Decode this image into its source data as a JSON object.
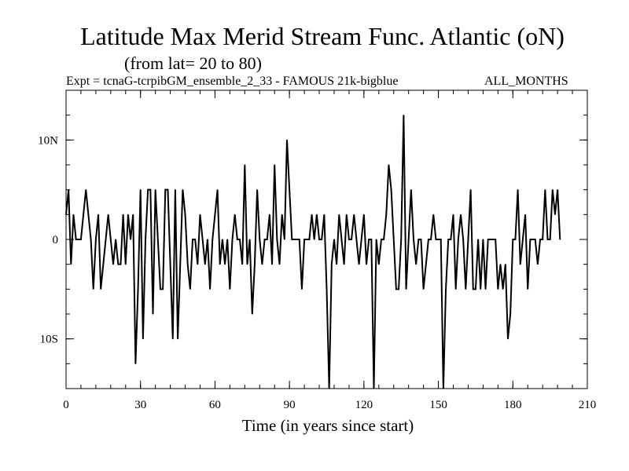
{
  "chart_data": {
    "type": "line",
    "title": "Latitude Max Merid Stream Func. Atlantic (oN)",
    "subtitle": "(from lat= 20 to 80)",
    "experiment": "Expt = tcnaG-tcrpibGM_ensemble_2_33 - FAMOUS 21k-bigblue",
    "months_label": "ALL_MONTHS",
    "xlabel": "Time (in years since start)",
    "ylabel": "",
    "xlim": [
      0,
      210
    ],
    "ylim": [
      -15,
      15
    ],
    "x_ticks": [
      {
        "value": 0,
        "label": "0"
      },
      {
        "value": 30,
        "label": "30"
      },
      {
        "value": 60,
        "label": "60"
      },
      {
        "value": 90,
        "label": "90"
      },
      {
        "value": 120,
        "label": "120"
      },
      {
        "value": 150,
        "label": "150"
      },
      {
        "value": 180,
        "label": "180"
      },
      {
        "value": 210,
        "label": "210"
      }
    ],
    "y_ticks": [
      {
        "value": 10,
        "label": "10N"
      },
      {
        "value": 0,
        "label": "0"
      },
      {
        "value": -10,
        "label": "10S"
      }
    ],
    "x_minor_step": 6,
    "y_minor_step": 2.5,
    "series": [
      {
        "name": "Latitude Max Merid Stream Func.",
        "x_start": 0,
        "x_step": 1,
        "values": [
          2.5,
          5,
          -2.5,
          2.5,
          0,
          0,
          0,
          2.5,
          5,
          2.5,
          0,
          -5,
          0,
          2.5,
          -5,
          -2.5,
          0,
          2.5,
          0,
          -2.5,
          0,
          -2.5,
          -2.5,
          2.5,
          -2.5,
          2.5,
          0,
          2.5,
          -12.5,
          -5,
          5,
          -10,
          0,
          5,
          5,
          -7.5,
          5,
          0,
          -5,
          -5,
          5,
          5,
          -2.5,
          -10,
          5,
          -10,
          -2.5,
          5,
          2.5,
          -2.5,
          -5,
          0,
          0,
          -2.5,
          2.5,
          0,
          -2.5,
          0,
          -5,
          0,
          2.5,
          5,
          -2.5,
          0,
          -2.5,
          0,
          -5,
          0,
          2.5,
          0,
          0,
          -2.5,
          7.5,
          -2.5,
          0,
          -7.5,
          -2.5,
          5,
          0,
          -2.5,
          0,
          0,
          2.5,
          -2.5,
          7.5,
          0,
          -2.5,
          2.5,
          0,
          10,
          5,
          0,
          0,
          0,
          0,
          -5,
          0,
          0,
          0,
          2.5,
          0,
          2.5,
          0,
          0,
          2.5,
          -5,
          -15,
          -2.5,
          0,
          -2.5,
          2.5,
          0,
          -2.5,
          2.5,
          0,
          0,
          2.5,
          0,
          -2.5,
          0,
          2.5,
          -2.5,
          0,
          0,
          -15,
          0,
          -2.5,
          0,
          0,
          2.5,
          7.5,
          5,
          0,
          -5,
          -5,
          0,
          12.5,
          -5,
          0,
          5,
          0,
          -2.5,
          0,
          0,
          -5,
          -2.5,
          0,
          0,
          2.5,
          0,
          0,
          0,
          -15,
          -5,
          0,
          0,
          2.5,
          -5,
          0,
          2.5,
          0,
          -5,
          0,
          5,
          -5,
          -5,
          0,
          -5,
          0,
          -5,
          0,
          0,
          0,
          0,
          -5,
          -2.5,
          -5,
          -2.5,
          -10,
          -7.5,
          0,
          0,
          5,
          -2.5,
          0,
          2.5,
          -5,
          0,
          0,
          0,
          -2.5,
          0,
          0,
          5,
          0,
          0,
          5,
          2.5,
          5,
          0
        ]
      }
    ]
  }
}
